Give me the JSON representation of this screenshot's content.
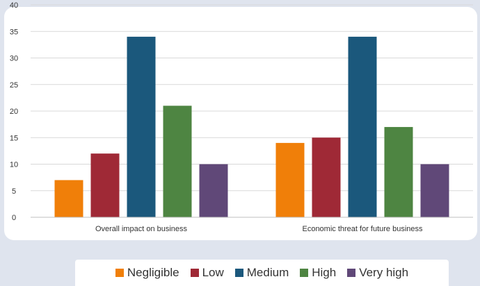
{
  "chart_data": {
    "type": "bar",
    "categories": [
      "Overall impact on business",
      "Economic threat for future business"
    ],
    "series": [
      {
        "name": "Negligible",
        "color": "#F07F09",
        "values": [
          7,
          14
        ]
      },
      {
        "name": "Low",
        "color": "#9F2936",
        "values": [
          12,
          15
        ]
      },
      {
        "name": "Medium",
        "color": "#1B587C",
        "values": [
          34,
          34
        ]
      },
      {
        "name": "High",
        "color": "#4E8542",
        "values": [
          21,
          17
        ]
      },
      {
        "name": "Very high",
        "color": "#604878",
        "values": [
          10,
          10
        ]
      }
    ],
    "y_ticks": [
      "0",
      "5",
      "10",
      "15",
      "20",
      "25",
      "30",
      "35",
      "40"
    ],
    "ylim": [
      0,
      40
    ],
    "grid": true,
    "legend_position": "bottom",
    "title": "",
    "xlabel": "",
    "ylabel": ""
  }
}
